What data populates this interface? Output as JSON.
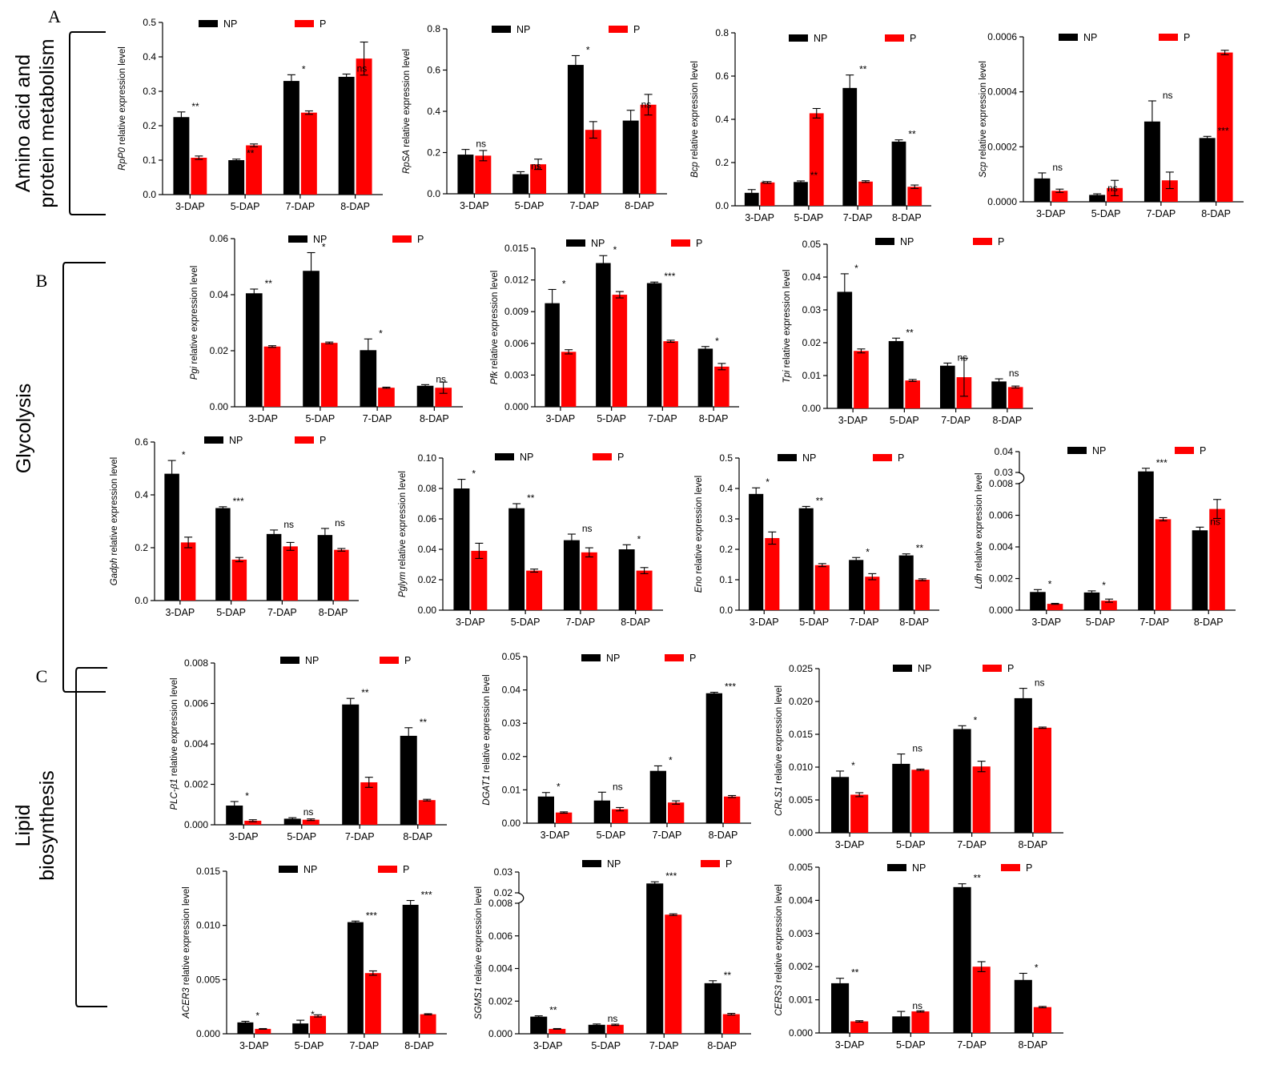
{
  "sections": [
    {
      "letter": "A",
      "lines": [
        "Amino acid and",
        "protein metabolism"
      ]
    },
    {
      "letter": "B",
      "lines": [
        "Glycolysis"
      ]
    },
    {
      "letter": "C",
      "lines": [
        "Lipid",
        "biosynthesis"
      ]
    }
  ],
  "colors": {
    "NP": "#000000",
    "P": "#ff0000"
  },
  "chart_data": [
    {
      "type": "bar",
      "gene": "RpP0",
      "ylabel_suffix": " relative expression level",
      "categories": [
        "3-DAP",
        "5-DAP",
        "7-DAP",
        "8-DAP"
      ],
      "series": [
        {
          "name": "NP",
          "values": [
            0.225,
            0.1,
            0.33,
            0.342
          ],
          "errors": [
            0.015,
            0.003,
            0.018,
            0.008
          ]
        },
        {
          "name": "P",
          "values": [
            0.107,
            0.143,
            0.238,
            0.395
          ],
          "errors": [
            0.005,
            0.004,
            0.005,
            0.048
          ]
        }
      ],
      "significance": [
        "**",
        "**",
        "*",
        "ns"
      ],
      "ylim": [
        0,
        0.5
      ],
      "yticks": [
        0.0,
        0.1,
        0.2,
        0.3,
        0.4,
        0.5
      ],
      "ytick_labels": [
        "0.0",
        "0.1",
        "0.2",
        "0.3",
        "0.4",
        "0.5"
      ]
    },
    {
      "type": "bar",
      "gene": "RpSA",
      "ylabel_suffix": " relative expression level",
      "categories": [
        "3-DAP",
        "5-DAP",
        "7-DAP",
        "8-DAP"
      ],
      "series": [
        {
          "name": "NP",
          "values": [
            0.19,
            0.095,
            0.625,
            0.355
          ],
          "errors": [
            0.025,
            0.012,
            0.045,
            0.05
          ]
        },
        {
          "name": "P",
          "values": [
            0.185,
            0.143,
            0.31,
            0.432
          ],
          "errors": [
            0.025,
            0.025,
            0.04,
            0.05
          ]
        }
      ],
      "significance": [
        "ns",
        "ns",
        "*",
        "ns"
      ],
      "ylim": [
        0,
        0.8
      ],
      "yticks": [
        0.0,
        0.2,
        0.4,
        0.6,
        0.8
      ],
      "ytick_labels": [
        "0.0",
        "0.2",
        "0.4",
        "0.6",
        "0.8"
      ]
    },
    {
      "type": "bar",
      "gene": "Bcp",
      "ylabel_suffix": " relative expression level",
      "categories": [
        "3-DAP",
        "5-DAP",
        "7-DAP",
        "8-DAP"
      ],
      "series": [
        {
          "name": "NP",
          "values": [
            0.06,
            0.11,
            0.545,
            0.297
          ],
          "errors": [
            0.015,
            0.005,
            0.06,
            0.008
          ]
        },
        {
          "name": "P",
          "values": [
            0.108,
            0.428,
            0.112,
            0.088
          ],
          "errors": [
            0.004,
            0.022,
            0.004,
            0.008
          ]
        }
      ],
      "significance": [
        "*",
        "**",
        "**",
        "**"
      ],
      "ylim": [
        0,
        0.8
      ],
      "yticks": [
        0.0,
        0.2,
        0.4,
        0.6,
        0.8
      ],
      "ytick_labels": [
        "0.0",
        "0.2",
        "0.4",
        "0.6",
        "0.8"
      ]
    },
    {
      "type": "bar",
      "gene": "Scp",
      "ylabel_suffix": " relative expression level",
      "categories": [
        "3-DAP",
        "5-DAP",
        "7-DAP",
        "8-DAP"
      ],
      "series": [
        {
          "name": "NP",
          "values": [
            8.5e-05,
            2.5e-05,
            0.000292,
            0.000232
          ],
          "errors": [
            2e-05,
            4e-06,
            7.5e-05,
            6e-06
          ]
        },
        {
          "name": "P",
          "values": [
            4e-05,
            5e-05,
            7.8e-05,
            0.000543
          ],
          "errors": [
            6e-06,
            2.8e-05,
            3e-05,
            8e-06
          ]
        }
      ],
      "significance": [
        "ns",
        "ns",
        "ns",
        "***"
      ],
      "ylim": [
        0,
        0.0006
      ],
      "yticks": [
        0,
        0.0002,
        0.0004,
        0.0006
      ],
      "ytick_labels": [
        "0.0000",
        "0.0002",
        "0.0004",
        "0.0006"
      ]
    },
    {
      "type": "bar",
      "gene": "Pgi",
      "ylabel_suffix": " relative expression level",
      "categories": [
        "3-DAP",
        "5-DAP",
        "7-DAP",
        "8-DAP"
      ],
      "series": [
        {
          "name": "NP",
          "values": [
            0.0405,
            0.0485,
            0.0202,
            0.0075
          ],
          "errors": [
            0.0015,
            0.0065,
            0.004,
            0.0004
          ]
        },
        {
          "name": "P",
          "values": [
            0.0215,
            0.0228,
            0.0068,
            0.0068
          ],
          "errors": [
            0.0003,
            0.0003,
            0.0002,
            0.002
          ]
        }
      ],
      "significance": [
        "**",
        "*",
        "*",
        "ns"
      ],
      "ylim": [
        0,
        0.06
      ],
      "yticks": [
        0,
        0.02,
        0.04,
        0.06
      ],
      "ytick_labels": [
        "0.00",
        "0.02",
        "0.04",
        "0.06"
      ]
    },
    {
      "type": "bar",
      "gene": "Pfk",
      "ylabel_suffix": " relative expression level",
      "categories": [
        "3-DAP",
        "5-DAP",
        "7-DAP",
        "8-DAP"
      ],
      "series": [
        {
          "name": "NP",
          "values": [
            0.0098,
            0.0136,
            0.0117,
            0.0055
          ],
          "errors": [
            0.0013,
            0.0007,
            0.0001,
            0.0002
          ]
        },
        {
          "name": "P",
          "values": [
            0.0052,
            0.0106,
            0.0062,
            0.0038
          ],
          "errors": [
            0.0002,
            0.0003,
            0.0001,
            0.0003
          ]
        }
      ],
      "significance": [
        "*",
        "*",
        "***",
        "*"
      ],
      "ylim": [
        0,
        0.015
      ],
      "yticks": [
        0,
        0.003,
        0.006,
        0.009,
        0.012,
        0.015
      ],
      "ytick_labels": [
        "0.000",
        "0.003",
        "0.006",
        "0.009",
        "0.012",
        "0.015"
      ]
    },
    {
      "type": "bar",
      "gene": "Tpi",
      "ylabel_suffix": " relative expression level",
      "categories": [
        "3-DAP",
        "5-DAP",
        "7-DAP",
        "8-DAP"
      ],
      "series": [
        {
          "name": "NP",
          "values": [
            0.0355,
            0.0205,
            0.013,
            0.0082
          ],
          "errors": [
            0.0055,
            0.0009,
            0.0008,
            0.0008
          ]
        },
        {
          "name": "P",
          "values": [
            0.0175,
            0.0085,
            0.0095,
            0.0065
          ],
          "errors": [
            0.0006,
            0.0003,
            0.0058,
            0.0003
          ]
        }
      ],
      "significance": [
        "*",
        "**",
        "ns",
        "ns"
      ],
      "ylim": [
        0,
        0.05
      ],
      "yticks": [
        0,
        0.01,
        0.02,
        0.03,
        0.04,
        0.05
      ],
      "ytick_labels": [
        "0.00",
        "0.01",
        "0.02",
        "0.03",
        "0.04",
        "0.05"
      ]
    },
    {
      "type": "bar",
      "gene": "Gadph",
      "ylabel_suffix": " relative expression level",
      "categories": [
        "3-DAP",
        "5-DAP",
        "7-DAP",
        "8-DAP"
      ],
      "series": [
        {
          "name": "NP",
          "values": [
            0.48,
            0.35,
            0.252,
            0.248
          ],
          "errors": [
            0.05,
            0.005,
            0.015,
            0.025
          ]
        },
        {
          "name": "P",
          "values": [
            0.22,
            0.155,
            0.205,
            0.192
          ],
          "errors": [
            0.02,
            0.008,
            0.015,
            0.005
          ]
        }
      ],
      "significance": [
        "*",
        "***",
        "ns",
        "ns"
      ],
      "ylim": [
        0,
        0.6
      ],
      "yticks": [
        0,
        0.2,
        0.4,
        0.6
      ],
      "ytick_labels": [
        "0.0",
        "0.2",
        "0.4",
        "0.6"
      ]
    },
    {
      "type": "bar",
      "gene": "Pglym",
      "ylabel_suffix": " relative expression level",
      "categories": [
        "3-DAP",
        "5-DAP",
        "7-DAP",
        "8-DAP"
      ],
      "series": [
        {
          "name": "NP",
          "values": [
            0.08,
            0.067,
            0.046,
            0.04
          ],
          "errors": [
            0.006,
            0.003,
            0.004,
            0.003
          ]
        },
        {
          "name": "P",
          "values": [
            0.039,
            0.026,
            0.038,
            0.026
          ],
          "errors": [
            0.005,
            0.001,
            0.003,
            0.002
          ]
        }
      ],
      "significance": [
        "*",
        "**",
        "ns",
        "*"
      ],
      "ylim": [
        0,
        0.1
      ],
      "yticks": [
        0,
        0.02,
        0.04,
        0.06,
        0.08,
        0.1
      ],
      "ytick_labels": [
        "0.00",
        "0.02",
        "0.04",
        "0.06",
        "0.08",
        "0.10"
      ]
    },
    {
      "type": "bar",
      "gene": "Eno",
      "ylabel_suffix": " relative expression level",
      "categories": [
        "3-DAP",
        "5-DAP",
        "7-DAP",
        "8-DAP"
      ],
      "series": [
        {
          "name": "NP",
          "values": [
            0.382,
            0.335,
            0.165,
            0.18
          ],
          "errors": [
            0.02,
            0.006,
            0.008,
            0.005
          ]
        },
        {
          "name": "P",
          "values": [
            0.237,
            0.148,
            0.11,
            0.1
          ],
          "errors": [
            0.02,
            0.005,
            0.01,
            0.003
          ]
        }
      ],
      "significance": [
        "*",
        "**",
        "*",
        "**"
      ],
      "ylim": [
        0,
        0.5
      ],
      "yticks": [
        0,
        0.1,
        0.2,
        0.3,
        0.4,
        0.5
      ],
      "ytick_labels": [
        "0.0",
        "0.1",
        "0.2",
        "0.3",
        "0.4",
        "0.5"
      ]
    },
    {
      "type": "bar",
      "gene": "Ldh",
      "ylabel_suffix": " relative expression level",
      "categories": [
        "3-DAP",
        "5-DAP",
        "7-DAP",
        "8-DAP"
      ],
      "series": [
        {
          "name": "NP",
          "values": [
            0.00115,
            0.00112,
            0.0305,
            0.00505
          ],
          "errors": [
            0.00015,
            0.0001,
            0.0015,
            0.0002
          ]
        },
        {
          "name": "P",
          "values": [
            0.0004,
            0.0006,
            0.00575,
            0.0064
          ],
          "errors": [
            3e-05,
            0.0001,
            0.0001,
            0.0006
          ]
        }
      ],
      "significance": [
        "*",
        "*",
        "***",
        "ns"
      ],
      "ylim": [
        0,
        0.04
      ],
      "axis_break": [
        0.008,
        0.03
      ],
      "yticks": [
        0,
        0.002,
        0.004,
        0.006,
        0.008,
        0.03,
        0.04
      ],
      "ytick_labels": [
        "0.000",
        "0.002",
        "0.004",
        "0.006",
        "0.008",
        "0.03",
        "0.04"
      ]
    },
    {
      "type": "bar",
      "gene": "PLC-β1",
      "ylabel_suffix": " relative expression level",
      "categories": [
        "3-DAP",
        "5-DAP",
        "7-DAP",
        "8-DAP"
      ],
      "series": [
        {
          "name": "NP",
          "values": [
            0.00095,
            0.0003,
            0.00595,
            0.0044
          ],
          "errors": [
            0.0002,
            5e-05,
            0.0003,
            0.0004
          ]
        },
        {
          "name": "P",
          "values": [
            0.0002,
            0.00025,
            0.0021,
            0.00122
          ],
          "errors": [
            5e-05,
            4e-05,
            0.00025,
            4e-05
          ]
        }
      ],
      "significance": [
        "*",
        "ns",
        "**",
        "**"
      ],
      "ylim": [
        0,
        0.008
      ],
      "yticks": [
        0,
        0.002,
        0.004,
        0.006,
        0.008
      ],
      "ytick_labels": [
        "0.000",
        "0.002",
        "0.004",
        "0.006",
        "0.008"
      ]
    },
    {
      "type": "bar",
      "gene": "DGAT1",
      "ylabel_suffix": " relative expression level",
      "categories": [
        "3-DAP",
        "5-DAP",
        "7-DAP",
        "8-DAP"
      ],
      "series": [
        {
          "name": "NP",
          "values": [
            0.008,
            0.0068,
            0.0157,
            0.039
          ],
          "errors": [
            0.0012,
            0.0025,
            0.0015,
            0.0003
          ]
        },
        {
          "name": "P",
          "values": [
            0.0032,
            0.0042,
            0.0062,
            0.008
          ],
          "errors": [
            0.0002,
            0.0005,
            0.0005,
            0.0003
          ]
        }
      ],
      "significance": [
        "*",
        "ns",
        "*",
        "***"
      ],
      "ylim": [
        0,
        0.05
      ],
      "yticks": [
        0,
        0.01,
        0.02,
        0.03,
        0.04,
        0.05
      ],
      "ytick_labels": [
        "0.00",
        "0.01",
        "0.02",
        "0.03",
        "0.04",
        "0.05"
      ]
    },
    {
      "type": "bar",
      "gene": "CRLS1",
      "ylabel_suffix": " relative expression level",
      "categories": [
        "3-DAP",
        "5-DAP",
        "7-DAP",
        "8-DAP"
      ],
      "series": [
        {
          "name": "NP",
          "values": [
            0.0085,
            0.0105,
            0.0158,
            0.0205
          ],
          "errors": [
            0.0009,
            0.0015,
            0.0005,
            0.0015
          ]
        },
        {
          "name": "P",
          "values": [
            0.0058,
            0.0096,
            0.0101,
            0.016
          ],
          "errors": [
            0.0003,
            0.0001,
            0.0008,
            0.0001
          ]
        }
      ],
      "significance": [
        "*",
        "ns",
        "*",
        "ns"
      ],
      "ylim": [
        0,
        0.025
      ],
      "yticks": [
        0,
        0.005,
        0.01,
        0.015,
        0.02,
        0.025
      ],
      "ytick_labels": [
        "0.000",
        "0.005",
        "0.010",
        "0.015",
        "0.020",
        "0.025"
      ]
    },
    {
      "type": "bar",
      "gene": "ACER3",
      "ylabel_suffix": " relative expression level",
      "categories": [
        "3-DAP",
        "5-DAP",
        "7-DAP",
        "8-DAP"
      ],
      "series": [
        {
          "name": "NP",
          "values": [
            0.00105,
            0.00095,
            0.0103,
            0.0119
          ],
          "errors": [
            0.0001,
            0.0003,
            0.0001,
            0.0004
          ]
        },
        {
          "name": "P",
          "values": [
            0.00045,
            0.00165,
            0.0056,
            0.0018
          ],
          "errors": [
            3e-05,
            0.0001,
            0.0002,
            5e-05
          ]
        }
      ],
      "significance": [
        "*",
        "*",
        "***",
        "***"
      ],
      "ylim": [
        0,
        0.015
      ],
      "yticks": [
        0,
        0.005,
        0.01,
        0.015
      ],
      "ytick_labels": [
        "0.000",
        "0.005",
        "0.010",
        "0.015"
      ]
    },
    {
      "type": "bar",
      "gene": "SGMS1",
      "ylabel_suffix": " relative expression level",
      "categories": [
        "3-DAP",
        "5-DAP",
        "7-DAP",
        "8-DAP"
      ],
      "series": [
        {
          "name": "NP",
          "values": [
            0.00105,
            0.00055,
            0.0245,
            0.0031
          ],
          "errors": [
            5e-05,
            5e-05,
            0.0008,
            0.00015
          ]
        },
        {
          "name": "P",
          "values": [
            0.0003,
            0.00055,
            0.0073,
            0.0012
          ],
          "errors": [
            2e-05,
            4e-05,
            5e-05,
            5e-05
          ]
        }
      ],
      "significance": [
        "**",
        "ns",
        "***",
        "**"
      ],
      "ylim": [
        0,
        0.03
      ],
      "axis_break": [
        0.008,
        0.02
      ],
      "yticks": [
        0,
        0.002,
        0.004,
        0.006,
        0.008,
        0.02,
        0.03
      ],
      "ytick_labels": [
        "0.000",
        "0.002",
        "0.004",
        "0.006",
        "0.008",
        "0.02",
        "0.03"
      ]
    },
    {
      "type": "bar",
      "gene": "CERS3",
      "ylabel_suffix": " relative expression level",
      "categories": [
        "3-DAP",
        "5-DAP",
        "7-DAP",
        "8-DAP"
      ],
      "series": [
        {
          "name": "NP",
          "values": [
            0.0015,
            0.0005,
            0.0044,
            0.0016
          ],
          "errors": [
            0.00015,
            0.00015,
            0.0001,
            0.0002
          ]
        },
        {
          "name": "P",
          "values": [
            0.00035,
            0.00065,
            0.002,
            0.00078
          ],
          "errors": [
            2e-05,
            2e-05,
            0.00015,
            2e-05
          ]
        }
      ],
      "significance": [
        "**",
        "ns",
        "**",
        "*"
      ],
      "ylim": [
        0,
        0.005
      ],
      "yticks": [
        0,
        0.001,
        0.002,
        0.003,
        0.004,
        0.005
      ],
      "ytick_labels": [
        "0.000",
        "0.001",
        "0.002",
        "0.003",
        "0.004",
        "0.005"
      ]
    }
  ]
}
